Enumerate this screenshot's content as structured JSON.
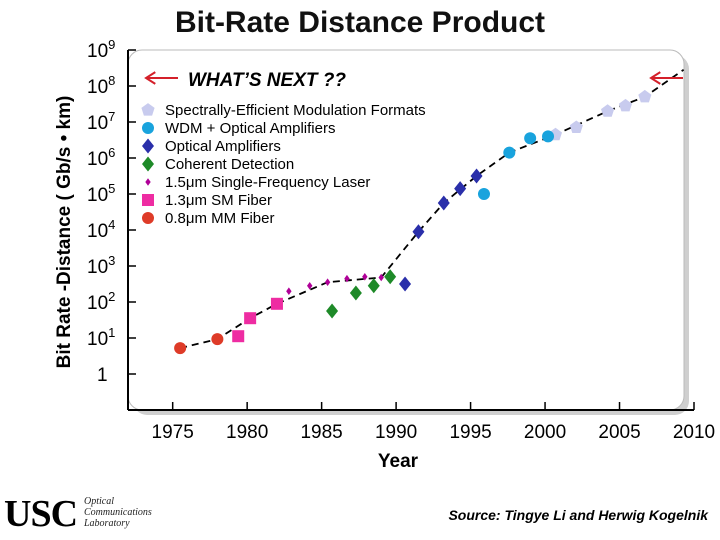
{
  "title": "Bit-Rate Distance Product",
  "source": "Source: Tingye Li and Herwig Kogelnik",
  "logo": {
    "text": "USC",
    "sub_lines": [
      "Optical",
      "Communications",
      "Laboratory"
    ]
  },
  "chart_data": {
    "type": "scatter",
    "title": "Bit-Rate Distance Product",
    "xlabel": "Year",
    "ylabel": "Bit Rate -Distance ( Gb/s • km)",
    "xlim": [
      1972,
      2010
    ],
    "ylim_log10": [
      -1,
      9
    ],
    "y_scale": "log",
    "x_ticks": [
      1975,
      1980,
      1985,
      1990,
      1995,
      2000,
      2005,
      2010
    ],
    "y_ticks": [
      {
        "base": "1",
        "exp": ""
      },
      {
        "base": "10",
        "exp": "1"
      },
      {
        "base": "10",
        "exp": "2"
      },
      {
        "base": "10",
        "exp": "3"
      },
      {
        "base": "10",
        "exp": "4"
      },
      {
        "base": "10",
        "exp": "5"
      },
      {
        "base": "10",
        "exp": "6"
      },
      {
        "base": "10",
        "exp": "7"
      },
      {
        "base": "10",
        "exp": "8"
      },
      {
        "base": "10",
        "exp": "9"
      }
    ],
    "annotation": "WHAT’S NEXT ??",
    "series": [
      {
        "name": "Spectrally-Efficient Modulation Formats",
        "marker": "pentagon",
        "color": "#c8cbee",
        "points": [
          [
            2000.7,
            6.65
          ],
          [
            2002.1,
            6.85
          ],
          [
            2004.2,
            7.3
          ],
          [
            2005.4,
            7.45
          ],
          [
            2006.7,
            7.7
          ]
        ]
      },
      {
        "name": "WDM + Optical Amplifiers",
        "marker": "circle",
        "color": "#19a3dd",
        "points": [
          [
            1995.9,
            5.0
          ],
          [
            1997.6,
            6.15
          ],
          [
            1999.0,
            6.55
          ],
          [
            2000.2,
            6.6
          ]
        ]
      },
      {
        "name": "Optical Amplifiers",
        "marker": "diamond",
        "color": "#2a2faa",
        "points": [
          [
            1990.6,
            2.5
          ],
          [
            1991.5,
            3.95
          ],
          [
            1993.2,
            4.75
          ],
          [
            1994.3,
            5.15
          ],
          [
            1995.4,
            5.5
          ]
        ]
      },
      {
        "name": "Coherent Detection",
        "marker": "diamond",
        "color": "#1e8a28",
        "points": [
          [
            1985.7,
            1.75
          ],
          [
            1987.3,
            2.25
          ],
          [
            1988.5,
            2.45
          ],
          [
            1989.6,
            2.7
          ]
        ]
      },
      {
        "name": "1.5μm Single-Frequency Laser",
        "marker": "small-diamond",
        "color": "#b00098",
        "points": [
          [
            1982.8,
            2.3
          ],
          [
            1984.2,
            2.45
          ],
          [
            1985.4,
            2.55
          ],
          [
            1986.7,
            2.65
          ],
          [
            1987.9,
            2.7
          ],
          [
            1989.0,
            2.68
          ]
        ]
      },
      {
        "name": "1.3μm SM Fiber",
        "marker": "square",
        "color": "#ee2ca2",
        "points": [
          [
            1979.4,
            1.05
          ],
          [
            1980.2,
            1.55
          ],
          [
            1982.0,
            1.95
          ]
        ]
      },
      {
        "name": "0.8μm MM Fiber",
        "marker": "circle",
        "color": "#de3b28",
        "points": [
          [
            1975.5,
            0.72
          ],
          [
            1978.0,
            0.97
          ]
        ]
      }
    ],
    "trendline": {
      "style": "dashed",
      "color": "#000000",
      "points": [
        [
          1975.5,
          0.72
        ],
        [
          1978.0,
          0.97
        ],
        [
          1980.2,
          1.55
        ],
        [
          1982.0,
          1.95
        ],
        [
          1985.4,
          2.55
        ],
        [
          1989.0,
          2.68
        ],
        [
          1991.5,
          3.95
        ],
        [
          1993.2,
          4.75
        ],
        [
          1995.4,
          5.5
        ],
        [
          1997.6,
          6.15
        ],
        [
          2000.7,
          6.65
        ],
        [
          2004.2,
          7.3
        ],
        [
          2006.7,
          7.7
        ],
        [
          2009.3,
          8.45
        ]
      ]
    },
    "grid": false
  }
}
